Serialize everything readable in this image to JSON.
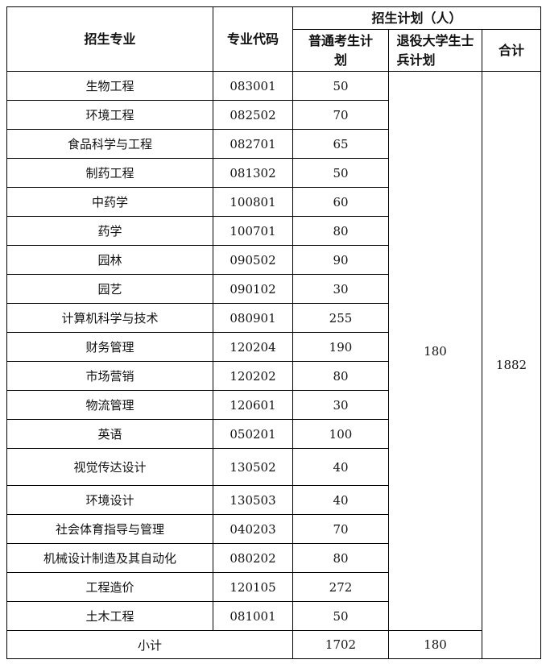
{
  "header": {
    "major": "招生专业",
    "code": "专业代码",
    "plan_group": "招生计划（人）",
    "regular": "普通考生计划",
    "veteran": "退役大学生士兵计划",
    "total": "合计"
  },
  "rows": [
    {
      "major": "生物工程",
      "code": "083001",
      "regular": "50"
    },
    {
      "major": "环境工程",
      "code": "082502",
      "regular": "70"
    },
    {
      "major": "食品科学与工程",
      "code": "082701",
      "regular": "65"
    },
    {
      "major": "制药工程",
      "code": "081302",
      "regular": "50"
    },
    {
      "major": "中药学",
      "code": "100801",
      "regular": "60"
    },
    {
      "major": "药学",
      "code": "100701",
      "regular": "80"
    },
    {
      "major": "园林",
      "code": "090502",
      "regular": "90"
    },
    {
      "major": "园艺",
      "code": "090102",
      "regular": "30"
    },
    {
      "major": "计算机科学与技术",
      "code": "080901",
      "regular": "255"
    },
    {
      "major": "财务管理",
      "code": "120204",
      "regular": "190"
    },
    {
      "major": "市场营销",
      "code": "120202",
      "regular": "80"
    },
    {
      "major": "物流管理",
      "code": "120601",
      "regular": "30"
    },
    {
      "major": "英语",
      "code": "050201",
      "regular": "100"
    },
    {
      "major": "视觉传达设计",
      "code": "130502",
      "regular": "40"
    },
    {
      "major": "环境设计",
      "code": "130503",
      "regular": "40"
    },
    {
      "major": "社会体育指导与管理",
      "code": "040203",
      "regular": "70"
    },
    {
      "major": "机械设计制造及其自动化",
      "code": "080202",
      "regular": "80"
    },
    {
      "major": "工程造价",
      "code": "120105",
      "regular": "272"
    },
    {
      "major": "土木工程",
      "code": "081001",
      "regular": "50"
    }
  ],
  "veteran_total": "180",
  "grand_total": "1882",
  "subtotal": {
    "label": "小计",
    "regular": "1702",
    "veteran": "180"
  }
}
